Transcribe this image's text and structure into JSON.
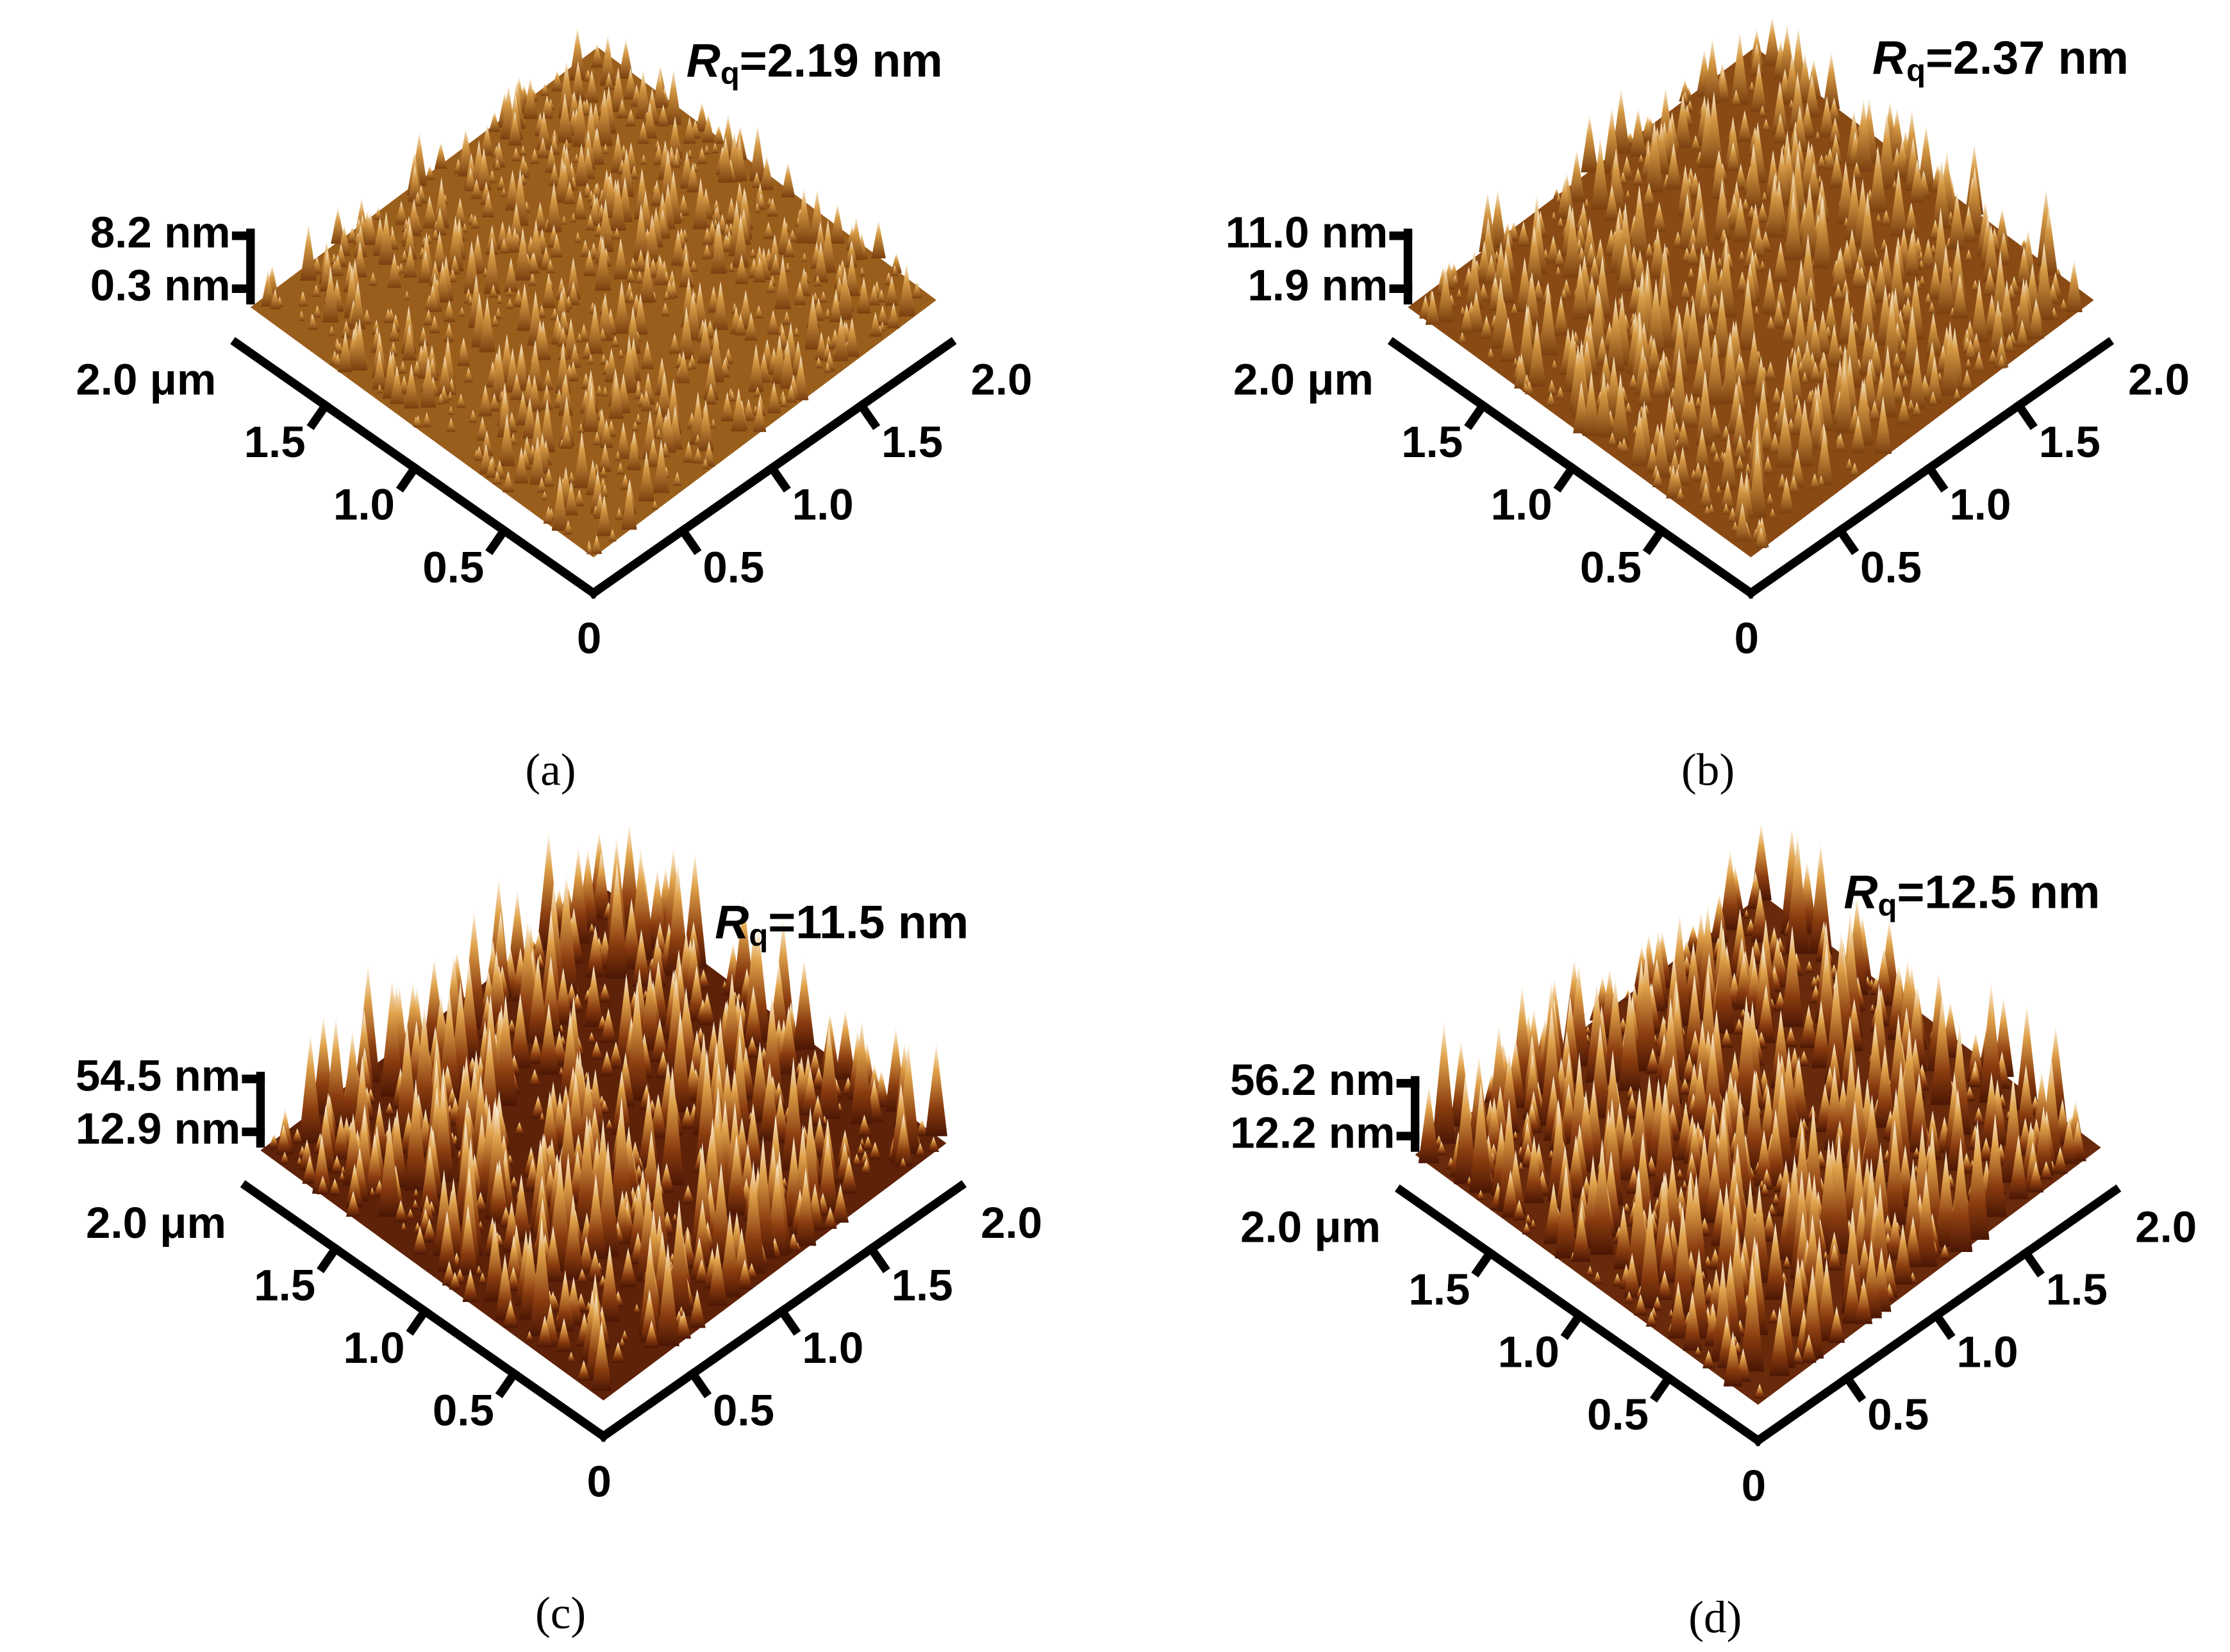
{
  "panels": [
    {
      "caption": "(a)",
      "rq": {
        "symbol": "R",
        "subscript": "q",
        "value": "=2.19 nm"
      },
      "z_scale": {
        "max": "8.2 nm",
        "min": "0.3 nm"
      },
      "left_axis": [
        "0.5",
        "1.0",
        "1.5",
        "2.0 μm"
      ],
      "right_axis": [
        "0.5",
        "1.0",
        "1.5",
        "2.0"
      ],
      "origin": "0"
    },
    {
      "caption": "(b)",
      "rq": {
        "symbol": "R",
        "subscript": "q",
        "value": "=2.37 nm"
      },
      "z_scale": {
        "max": "11.0 nm",
        "min": "1.9 nm"
      },
      "left_axis": [
        "0.5",
        "1.0",
        "1.5",
        "2.0 μm"
      ],
      "right_axis": [
        "0.5",
        "1.0",
        "1.5",
        "2.0"
      ],
      "origin": "0"
    },
    {
      "caption": "(c)",
      "rq": {
        "symbol": "R",
        "subscript": "q",
        "value": "=11.5 nm"
      },
      "z_scale": {
        "max": "54.5 nm",
        "min": "12.9 nm"
      },
      "left_axis": [
        "0.5",
        "1.0",
        "1.5",
        "2.0 μm"
      ],
      "right_axis": [
        "0.5",
        "1.0",
        "1.5",
        "2.0"
      ],
      "origin": "0"
    },
    {
      "caption": "(d)",
      "rq": {
        "symbol": "R",
        "subscript": "q",
        "value": "=12.5 nm"
      },
      "z_scale": {
        "max": "56.2 nm",
        "min": "12.2 nm"
      },
      "left_axis": [
        "0.5",
        "1.0",
        "1.5",
        "2.0 μm"
      ],
      "right_axis": [
        "0.5",
        "1.0",
        "1.5",
        "2.0"
      ],
      "origin": "0"
    }
  ]
}
